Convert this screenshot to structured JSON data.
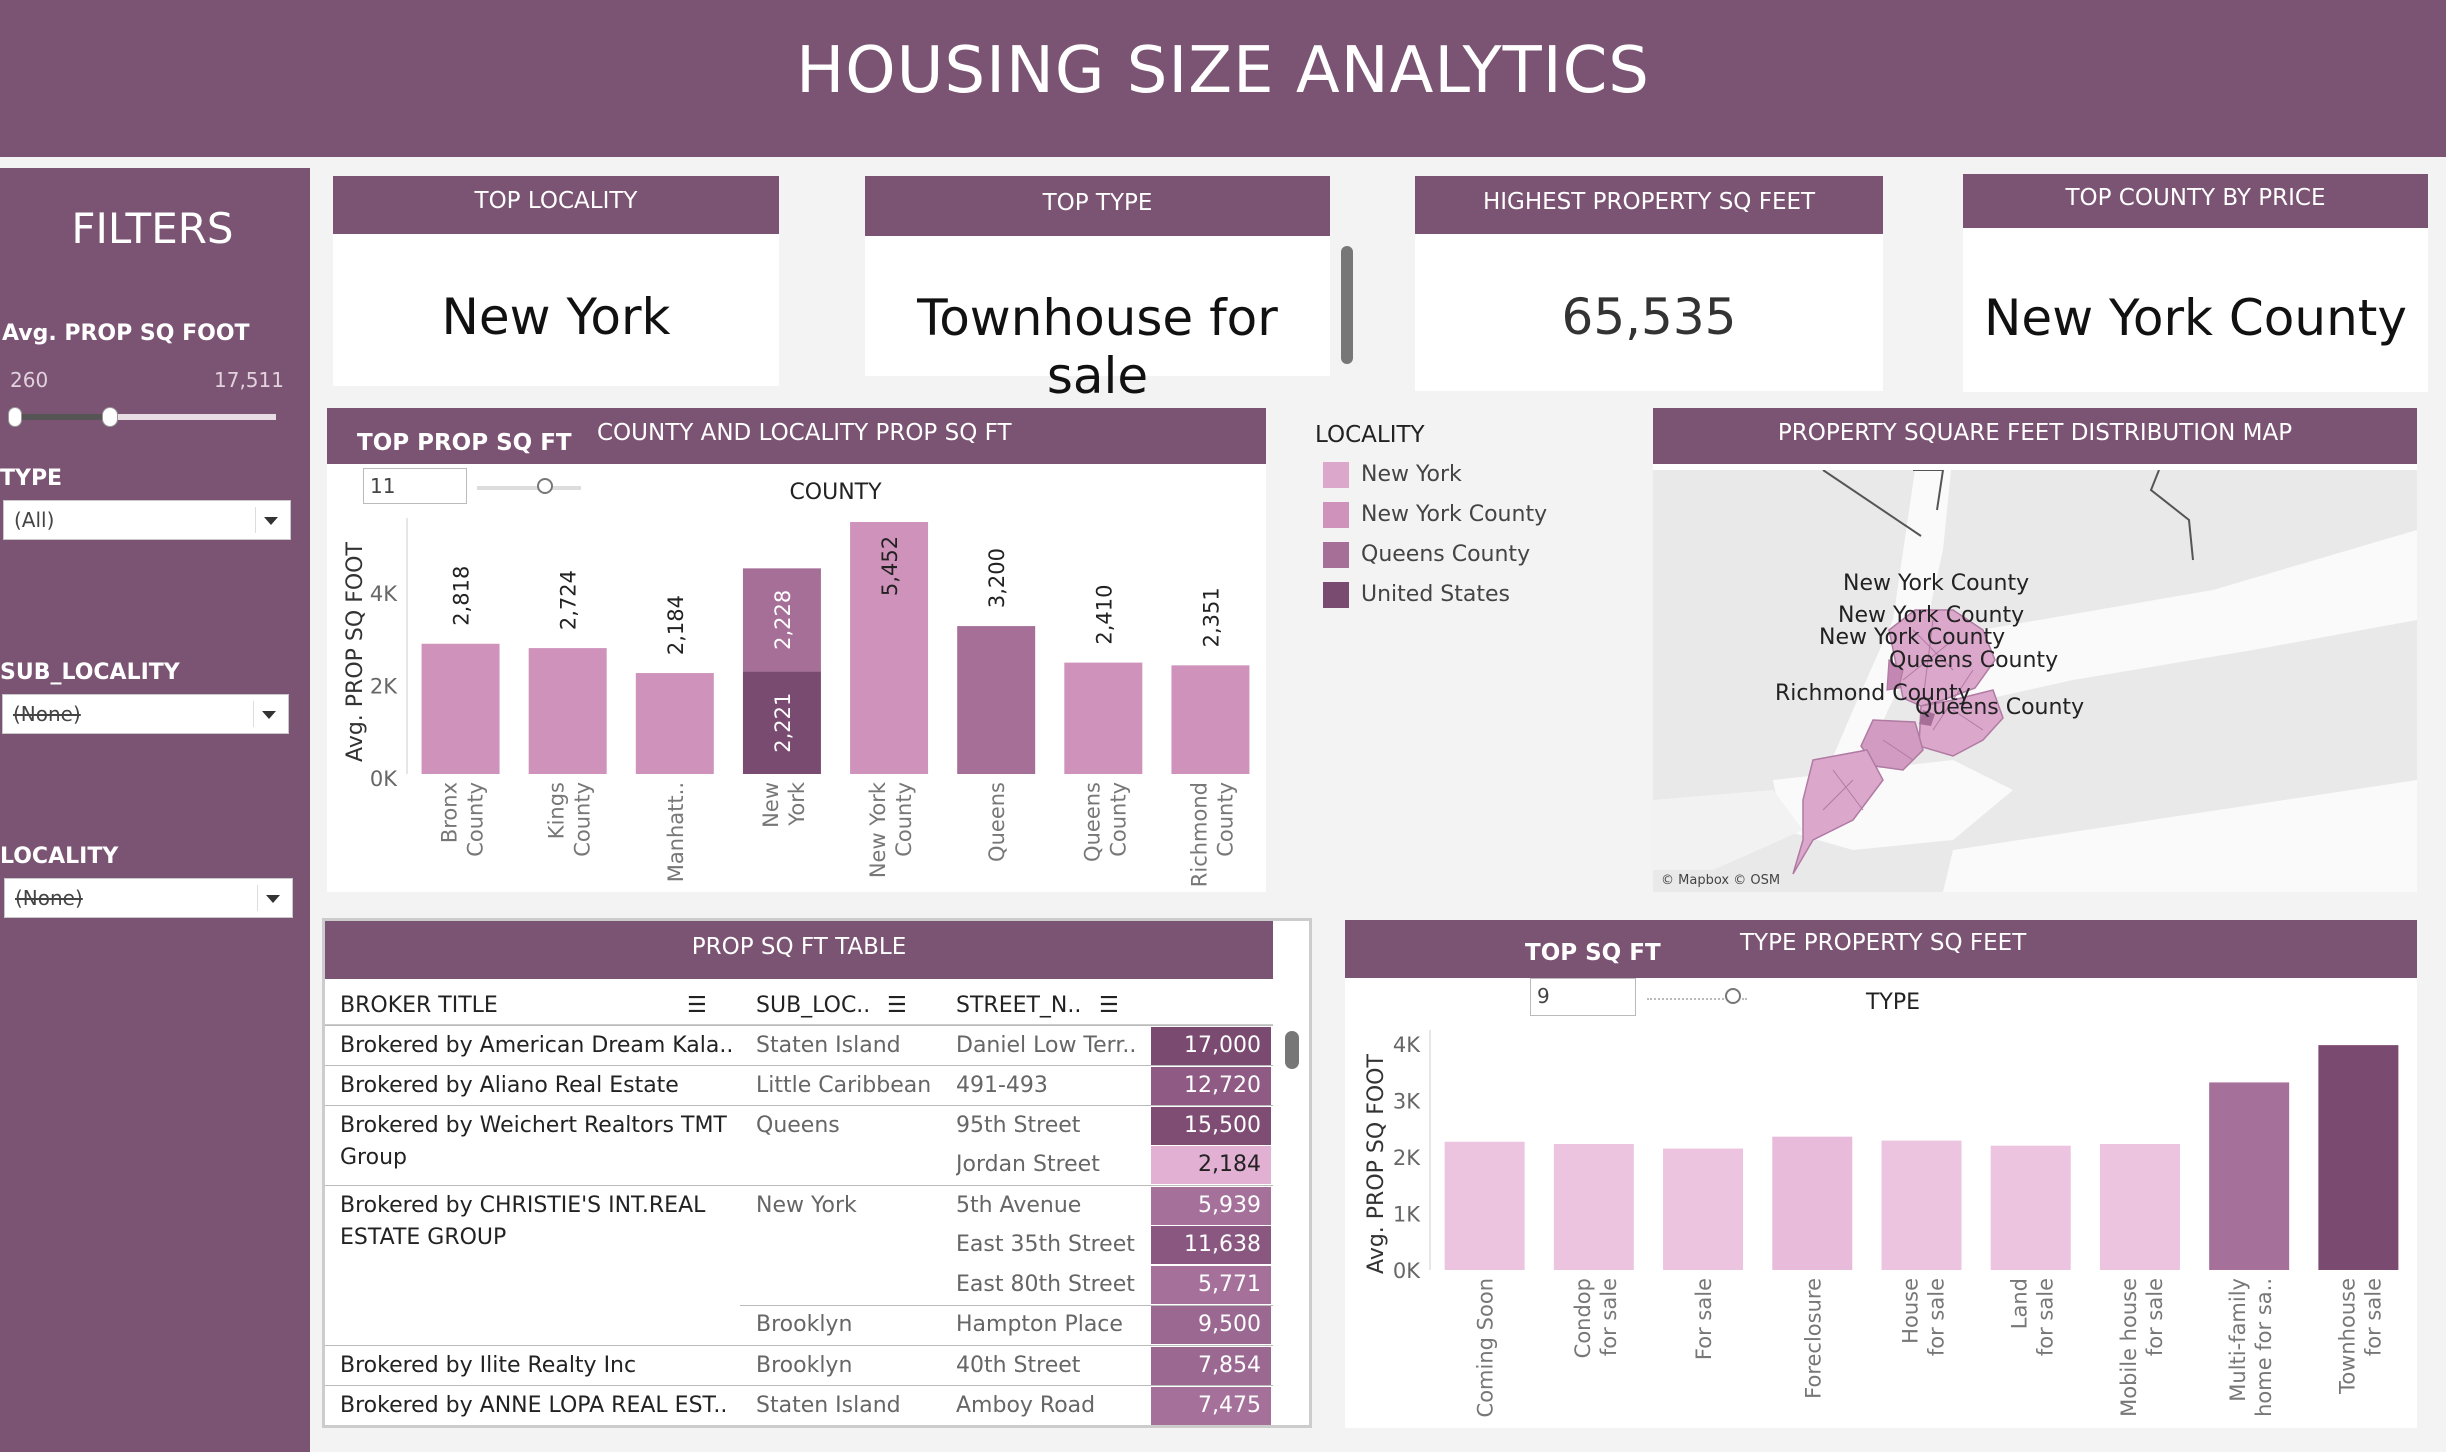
{
  "title": "HOUSING SIZE ANALYTICS",
  "colors": {
    "accent": "#7b5373",
    "c_ny": "#dba8cc",
    "c_nyc": "#cf93bb",
    "c_queens": "#a66f98",
    "c_us": "#7a4b70",
    "map_bg": "#e9e9e9"
  },
  "filters": {
    "title": "FILTERS",
    "avg_label": "Avg. PROP SQ FOOT",
    "avg_min": "260",
    "avg_max": "17,511",
    "type_label": "TYPE",
    "type_value": "(All)",
    "subloc_label": "SUB_LOCALITY",
    "subloc_value": "(None)",
    "locality_label": "LOCALITY",
    "locality_value": "(None)"
  },
  "kpis": [
    {
      "title": "TOP LOCALITY",
      "value": "New York"
    },
    {
      "title": "TOP TYPE",
      "value": "Townhouse for sale"
    },
    {
      "title": "HIGHEST PROPERTY SQ FEET",
      "value": "65,535"
    },
    {
      "title": "TOP COUNTY BY PRICE",
      "value": "New York County"
    }
  ],
  "county_panel": {
    "tab_left": "TOP PROP SQ FT",
    "tab_title": "COUNTY AND LOCALITY PROP SQ FT",
    "top_n": "11"
  },
  "legend": {
    "title": "LOCALITY",
    "items": [
      "New York",
      "New York County",
      "Queens County",
      "United States"
    ]
  },
  "map": {
    "title": "PROPERTY SQUARE FEET DISTRIBUTION MAP",
    "attribution": "© Mapbox © OSM",
    "labels": [
      "New York County",
      "New York County",
      "New York County",
      "Queens County",
      "Richmond County",
      "Queens County"
    ]
  },
  "table": {
    "title": "PROP SQ FT TABLE",
    "headers": [
      "BROKER TITLE",
      "SUB_LOC..",
      "STREET_N.."
    ],
    "rows": [
      {
        "broker": "Brokered by American Dream Kala..",
        "broker2": "",
        "sub": "Staten Island",
        "street": "Daniel Low Terr..",
        "value": "17,000"
      },
      {
        "broker": "Brokered by Aliano Real Estate",
        "broker2": "",
        "sub": "Little Caribbean",
        "street": "491-493",
        "value": "12,720"
      },
      {
        "broker": "Brokered by Weichert Realtors TMT",
        "broker2": "Group",
        "sub": "Queens",
        "street": "95th Street",
        "value": "15,500"
      },
      {
        "broker": "",
        "broker2": "",
        "sub": "",
        "street": "Jordan Street",
        "value": "2,184"
      },
      {
        "broker": "Brokered by CHRISTIE'S INT.REAL",
        "broker2": "ESTATE GROUP",
        "sub": "New York",
        "street": "5th Avenue",
        "value": "5,939"
      },
      {
        "broker": "",
        "broker2": "",
        "sub": "",
        "street": "East 35th Street",
        "value": "11,638"
      },
      {
        "broker": "",
        "broker2": "",
        "sub": "",
        "street": "East 80th Street",
        "value": "5,771"
      },
      {
        "broker": "",
        "broker2": "",
        "sub": "Brooklyn",
        "street": "Hampton Place",
        "value": "9,500"
      },
      {
        "broker": "Brokered by Ilite Realty Inc",
        "broker2": "",
        "sub": "Brooklyn",
        "street": "40th Street",
        "value": "7,854"
      },
      {
        "broker": "Brokered by ANNE LOPA REAL EST..",
        "broker2": "",
        "sub": "Staten Island",
        "street": "Amboy Road",
        "value": "7,475"
      }
    ]
  },
  "type_panel": {
    "tab_left": "TOP SQ FT",
    "tab_title": "TYPE PROPERTY SQ FEET",
    "top_n": "9"
  },
  "chart_data": [
    {
      "type": "bar",
      "title": "COUNTY",
      "ylabel": "Avg. PROP SQ FOOT",
      "ylim": [
        0,
        5452
      ],
      "y_ticks": [
        "0K",
        "2K",
        "4K"
      ],
      "y_tick_values": [
        0,
        2000,
        4000
      ],
      "categories": [
        "Bronx County",
        "Kings County",
        "Manhatt..",
        "New York",
        "New York County",
        "Queens",
        "Queens County",
        "Richmond County"
      ],
      "bars": [
        {
          "category": "Bronx County",
          "segments": [
            {
              "locality": "New York County",
              "value": 2818
            }
          ],
          "label": "2,818"
        },
        {
          "category": "Kings County",
          "segments": [
            {
              "locality": "New York County",
              "value": 2724
            }
          ],
          "label": "2,724"
        },
        {
          "category": "Manhatt..",
          "segments": [
            {
              "locality": "New York County",
              "value": 2184
            }
          ],
          "label": "2,184"
        },
        {
          "category": "New York",
          "segments": [
            {
              "locality": "United States",
              "value": 2221,
              "label": "2,221"
            },
            {
              "locality": "Queens County",
              "value": 2228,
              "label": "2,228"
            }
          ],
          "label": ""
        },
        {
          "category": "New York County",
          "segments": [
            {
              "locality": "New York County",
              "value": 5452
            }
          ],
          "label": "5,452"
        },
        {
          "category": "Queens",
          "segments": [
            {
              "locality": "Queens County",
              "value": 3200
            }
          ],
          "label": "3,200"
        },
        {
          "category": "Queens County",
          "segments": [
            {
              "locality": "New York County",
              "value": 2410
            }
          ],
          "label": "2,410"
        },
        {
          "category": "Richmond County",
          "segments": [
            {
              "locality": "New York County",
              "value": 2351
            }
          ],
          "label": "2,351"
        }
      ]
    },
    {
      "type": "bar",
      "title": "TYPE",
      "ylabel": "Avg. PROP SQ FOOT",
      "ylim": [
        0,
        4000
      ],
      "y_ticks": [
        "0K",
        "1K",
        "2K",
        "3K",
        "4K"
      ],
      "y_tick_values": [
        0,
        1000,
        2000,
        3000,
        4000
      ],
      "categories": [
        "Coming Soon",
        "Condop for sale",
        "For sale",
        "Foreclosure",
        "House for sale",
        "Land for sale",
        "Mobile house for sale",
        "Multi-family home for sa..",
        "Townhouse for sale"
      ],
      "values": [
        2270,
        2230,
        2150,
        2360,
        2290,
        2200,
        2230,
        3320,
        3980
      ],
      "colors": [
        "#ecc4e0",
        "#ecc4e0",
        "#ecc4e0",
        "#e9bbda",
        "#ecc4e0",
        "#ecc4e0",
        "#ecc4e0",
        "#a5719a",
        "#7b4a70"
      ]
    }
  ]
}
